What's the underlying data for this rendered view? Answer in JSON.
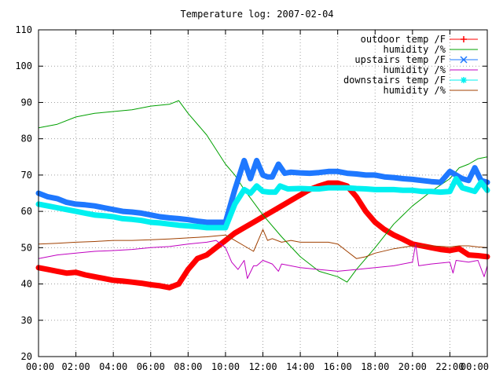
{
  "chart_data": {
    "type": "line",
    "title": "Temperature log: 2007-02-04",
    "xlabel": "",
    "ylabel": "",
    "ylim": [
      20,
      110
    ],
    "yticks": [
      20,
      30,
      40,
      50,
      60,
      70,
      80,
      90,
      100,
      110
    ],
    "xlim": [
      "00:00",
      "24:00"
    ],
    "xtick_labels": [
      "00:00",
      "02:00",
      "04:00",
      "06:00",
      "08:00",
      "10:00",
      "12:00",
      "14:00",
      "16:00",
      "18:00",
      "20:00",
      "22:00",
      "00:00"
    ],
    "grid": true,
    "legend_position": "top-right",
    "series": [
      {
        "name": "outdoor temp /F",
        "color": "#ff0000",
        "marker": "plus",
        "x": [
          "00:00",
          "00:30",
          "01:00",
          "01:30",
          "02:00",
          "02:30",
          "03:00",
          "03:30",
          "04:00",
          "04:30",
          "05:00",
          "05:30",
          "06:00",
          "06:30",
          "07:00",
          "07:30",
          "08:00",
          "08:30",
          "09:00",
          "09:30",
          "10:00",
          "10:30",
          "11:00",
          "11:30",
          "12:00",
          "12:30",
          "13:00",
          "13:30",
          "14:00",
          "14:30",
          "15:00",
          "15:30",
          "16:00",
          "16:30",
          "17:00",
          "17:30",
          "18:00",
          "18:30",
          "19:00",
          "19:30",
          "20:00",
          "20:30",
          "21:00",
          "21:30",
          "22:00",
          "22:30",
          "23:00",
          "23:30",
          "24:00"
        ],
        "values": [
          44.5,
          44,
          43.5,
          43,
          43.2,
          42.5,
          42,
          41.5,
          41,
          40.8,
          40.5,
          40.2,
          39.8,
          39.5,
          39,
          40,
          44,
          47,
          48,
          50,
          52,
          54,
          55.5,
          57,
          58.5,
          60,
          61.5,
          63,
          64.5,
          66,
          67,
          67.8,
          67.8,
          67,
          64,
          60,
          57,
          55,
          53.5,
          52.3,
          51,
          50.5,
          50,
          49.5,
          49.2,
          49.7,
          48,
          47.8,
          47.5
        ]
      },
      {
        "name": "humidity /%",
        "color": "#00a000",
        "marker": "none",
        "x": [
          "00:00",
          "01:00",
          "02:00",
          "03:00",
          "04:00",
          "05:00",
          "06:00",
          "07:00",
          "07:30",
          "08:00",
          "09:00",
          "10:00",
          "10:30",
          "11:00",
          "12:00",
          "13:00",
          "14:00",
          "15:00",
          "16:00",
          "16:30",
          "17:00",
          "18:00",
          "19:00",
          "20:00",
          "21:00",
          "22:00",
          "22:30",
          "23:00",
          "23:30",
          "24:00"
        ],
        "values": [
          83,
          84,
          86,
          87,
          87.5,
          88,
          89,
          89.5,
          90.5,
          87,
          81,
          73,
          70,
          66,
          59,
          53,
          47.5,
          43.5,
          42,
          40.5,
          44,
          50,
          56.5,
          61.5,
          65.5,
          69,
          72,
          73,
          74.5,
          75
        ]
      },
      {
        "name": "upstairs temp /F",
        "color": "#1e78ff",
        "marker": "cross",
        "x": [
          "00:00",
          "00:30",
          "01:00",
          "01:30",
          "02:00",
          "02:30",
          "03:00",
          "03:30",
          "04:00",
          "04:30",
          "05:00",
          "05:30",
          "06:00",
          "06:30",
          "07:00",
          "07:30",
          "08:00",
          "08:30",
          "09:00",
          "09:30",
          "10:00",
          "10:30",
          "11:00",
          "11:20",
          "11:40",
          "12:00",
          "12:15",
          "12:30",
          "12:50",
          "13:10",
          "13:30",
          "14:00",
          "14:30",
          "15:00",
          "15:30",
          "16:00",
          "16:30",
          "17:00",
          "17:30",
          "18:00",
          "18:30",
          "19:00",
          "19:30",
          "20:00",
          "20:30",
          "21:00",
          "21:30",
          "22:00",
          "22:20",
          "22:40",
          "23:00",
          "23:20",
          "23:40",
          "24:00"
        ],
        "values": [
          65,
          64,
          63.5,
          62.5,
          62,
          61.8,
          61.5,
          61,
          60.5,
          60,
          59.8,
          59.5,
          59,
          58.5,
          58.2,
          58,
          57.7,
          57.3,
          57,
          57,
          57,
          66,
          74,
          69,
          74,
          70,
          69.5,
          69.5,
          73,
          70.5,
          70.8,
          70.6,
          70.5,
          70.7,
          71,
          71,
          70.5,
          70.3,
          70,
          70,
          69.5,
          69.3,
          69,
          68.8,
          68.5,
          68.2,
          68,
          71,
          70,
          69,
          68.5,
          72,
          68.5,
          68
        ]
      },
      {
        "name": "humidity /%",
        "color": "#c000c0",
        "marker": "none",
        "x": [
          "00:00",
          "01:00",
          "02:00",
          "03:00",
          "04:00",
          "05:00",
          "06:00",
          "07:00",
          "08:00",
          "09:00",
          "09:30",
          "10:00",
          "10:20",
          "10:40",
          "11:00",
          "11:10",
          "11:30",
          "11:40",
          "12:00",
          "12:30",
          "12:50",
          "13:00",
          "14:00",
          "15:00",
          "16:00",
          "17:00",
          "18:00",
          "19:00",
          "20:00",
          "20:10",
          "20:20",
          "21:00",
          "22:00",
          "22:10",
          "22:20",
          "23:00",
          "23:30",
          "23:50",
          "24:00"
        ],
        "values": [
          47,
          48,
          48.5,
          49,
          49.2,
          49.5,
          50,
          50.3,
          51,
          51.5,
          52,
          50,
          46,
          44,
          46.5,
          41.5,
          45,
          45,
          46.5,
          45.5,
          43.5,
          45.5,
          44.5,
          44,
          43.5,
          44,
          44.5,
          45,
          46,
          51,
          45,
          45.5,
          46,
          43,
          46.5,
          46,
          46.5,
          42,
          45
        ]
      },
      {
        "name": "downstairs temp /F",
        "color": "#00f0f0",
        "marker": "star",
        "x": [
          "00:00",
          "00:30",
          "01:00",
          "01:30",
          "02:00",
          "02:30",
          "03:00",
          "03:30",
          "04:00",
          "04:30",
          "05:00",
          "05:30",
          "06:00",
          "06:30",
          "07:00",
          "07:30",
          "08:00",
          "08:30",
          "09:00",
          "09:30",
          "10:00",
          "10:30",
          "11:00",
          "11:20",
          "11:40",
          "12:00",
          "12:20",
          "12:40",
          "12:55",
          "13:20",
          "14:00",
          "14:30",
          "15:00",
          "15:30",
          "16:00",
          "16:30",
          "17:00",
          "17:30",
          "18:00",
          "18:30",
          "19:00",
          "19:30",
          "20:00",
          "20:30",
          "21:00",
          "21:30",
          "22:00",
          "22:20",
          "22:40",
          "23:00",
          "23:20",
          "23:40",
          "24:00"
        ],
        "values": [
          62,
          61.5,
          61,
          60.5,
          60,
          59.5,
          59,
          58.8,
          58.5,
          58,
          57.8,
          57.5,
          57,
          56.8,
          56.5,
          56.2,
          56,
          55.8,
          55.5,
          55.5,
          55.5,
          62,
          66,
          65,
          67,
          65.5,
          65.3,
          65.3,
          67,
          66.2,
          66.3,
          66.2,
          66.2,
          66.5,
          66.5,
          66.5,
          66.3,
          66.2,
          66,
          66,
          66,
          65.8,
          65.8,
          65.5,
          65.5,
          65.3,
          65.5,
          69,
          66.5,
          66,
          65.5,
          68,
          65.8
        ]
      },
      {
        "name": "humidity /%",
        "color": "#a04000",
        "marker": "none",
        "x": [
          "00:00",
          "01:00",
          "02:00",
          "03:00",
          "04:00",
          "05:00",
          "06:00",
          "07:00",
          "08:00",
          "09:00",
          "10:00",
          "10:30",
          "11:00",
          "11:30",
          "12:00",
          "12:15",
          "12:30",
          "13:00",
          "13:30",
          "14:00",
          "15:00",
          "15:30",
          "16:00",
          "16:30",
          "17:00",
          "17:30",
          "18:00",
          "19:00",
          "20:00",
          "21:00",
          "22:00",
          "22:30",
          "23:00",
          "23:30",
          "24:00"
        ],
        "values": [
          51,
          51.2,
          51.5,
          51.7,
          52,
          52,
          52.2,
          52.4,
          52.7,
          53,
          53.5,
          52,
          50.5,
          49,
          55,
          52,
          52.5,
          51.5,
          52,
          51.5,
          51.5,
          51.5,
          51,
          49,
          47,
          47.5,
          48.5,
          49.7,
          50.5,
          50.5,
          50.2,
          50.5,
          50.5,
          50.2,
          50
        ]
      }
    ]
  }
}
